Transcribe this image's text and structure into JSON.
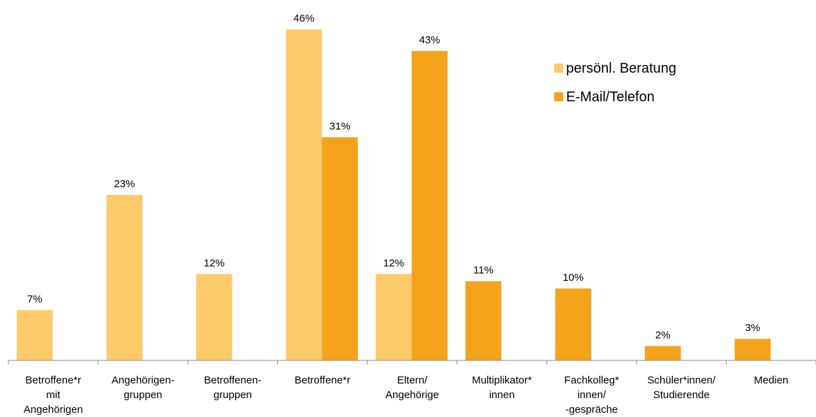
{
  "colors": {
    "light_orange": "#FFCA6A",
    "dark_orange": "#F5A31A",
    "axis": "#8C8C8C"
  },
  "chart_data": {
    "type": "bar",
    "title": "",
    "xlabel": "",
    "ylabel": "",
    "ylim": [
      0,
      46
    ],
    "grid": false,
    "legend_position": "top-right",
    "categories": [
      [
        "Betroffene*r",
        "mit",
        "Angehörigen"
      ],
      [
        "Angehörigen-",
        "gruppen"
      ],
      [
        "Betroffenen-",
        "gruppen"
      ],
      [
        "Betroffene*r"
      ],
      [
        "Eltern/",
        "Angehörige"
      ],
      [
        "Multiplikator*",
        "innen"
      ],
      [
        "Fachkolleg*",
        "innen/",
        "-gespräche"
      ],
      [
        "Schüler*innen/",
        "Studierende"
      ],
      [
        "Medien"
      ]
    ],
    "series": [
      {
        "name": "persönl. Beratung",
        "color": "#FFCA6A",
        "values": [
          7,
          23,
          12,
          46,
          12,
          null,
          null,
          null,
          null
        ],
        "labels": [
          "7%",
          "23%",
          "12%",
          "46%",
          "12%",
          null,
          null,
          null,
          null
        ]
      },
      {
        "name": "E-Mail/Telefon",
        "color": "#F5A31A",
        "values": [
          null,
          null,
          null,
          31,
          43,
          11,
          10,
          2,
          3
        ],
        "labels": [
          null,
          null,
          null,
          "31%",
          "43%",
          "11%",
          "10%",
          "2%",
          "3%"
        ]
      }
    ]
  }
}
